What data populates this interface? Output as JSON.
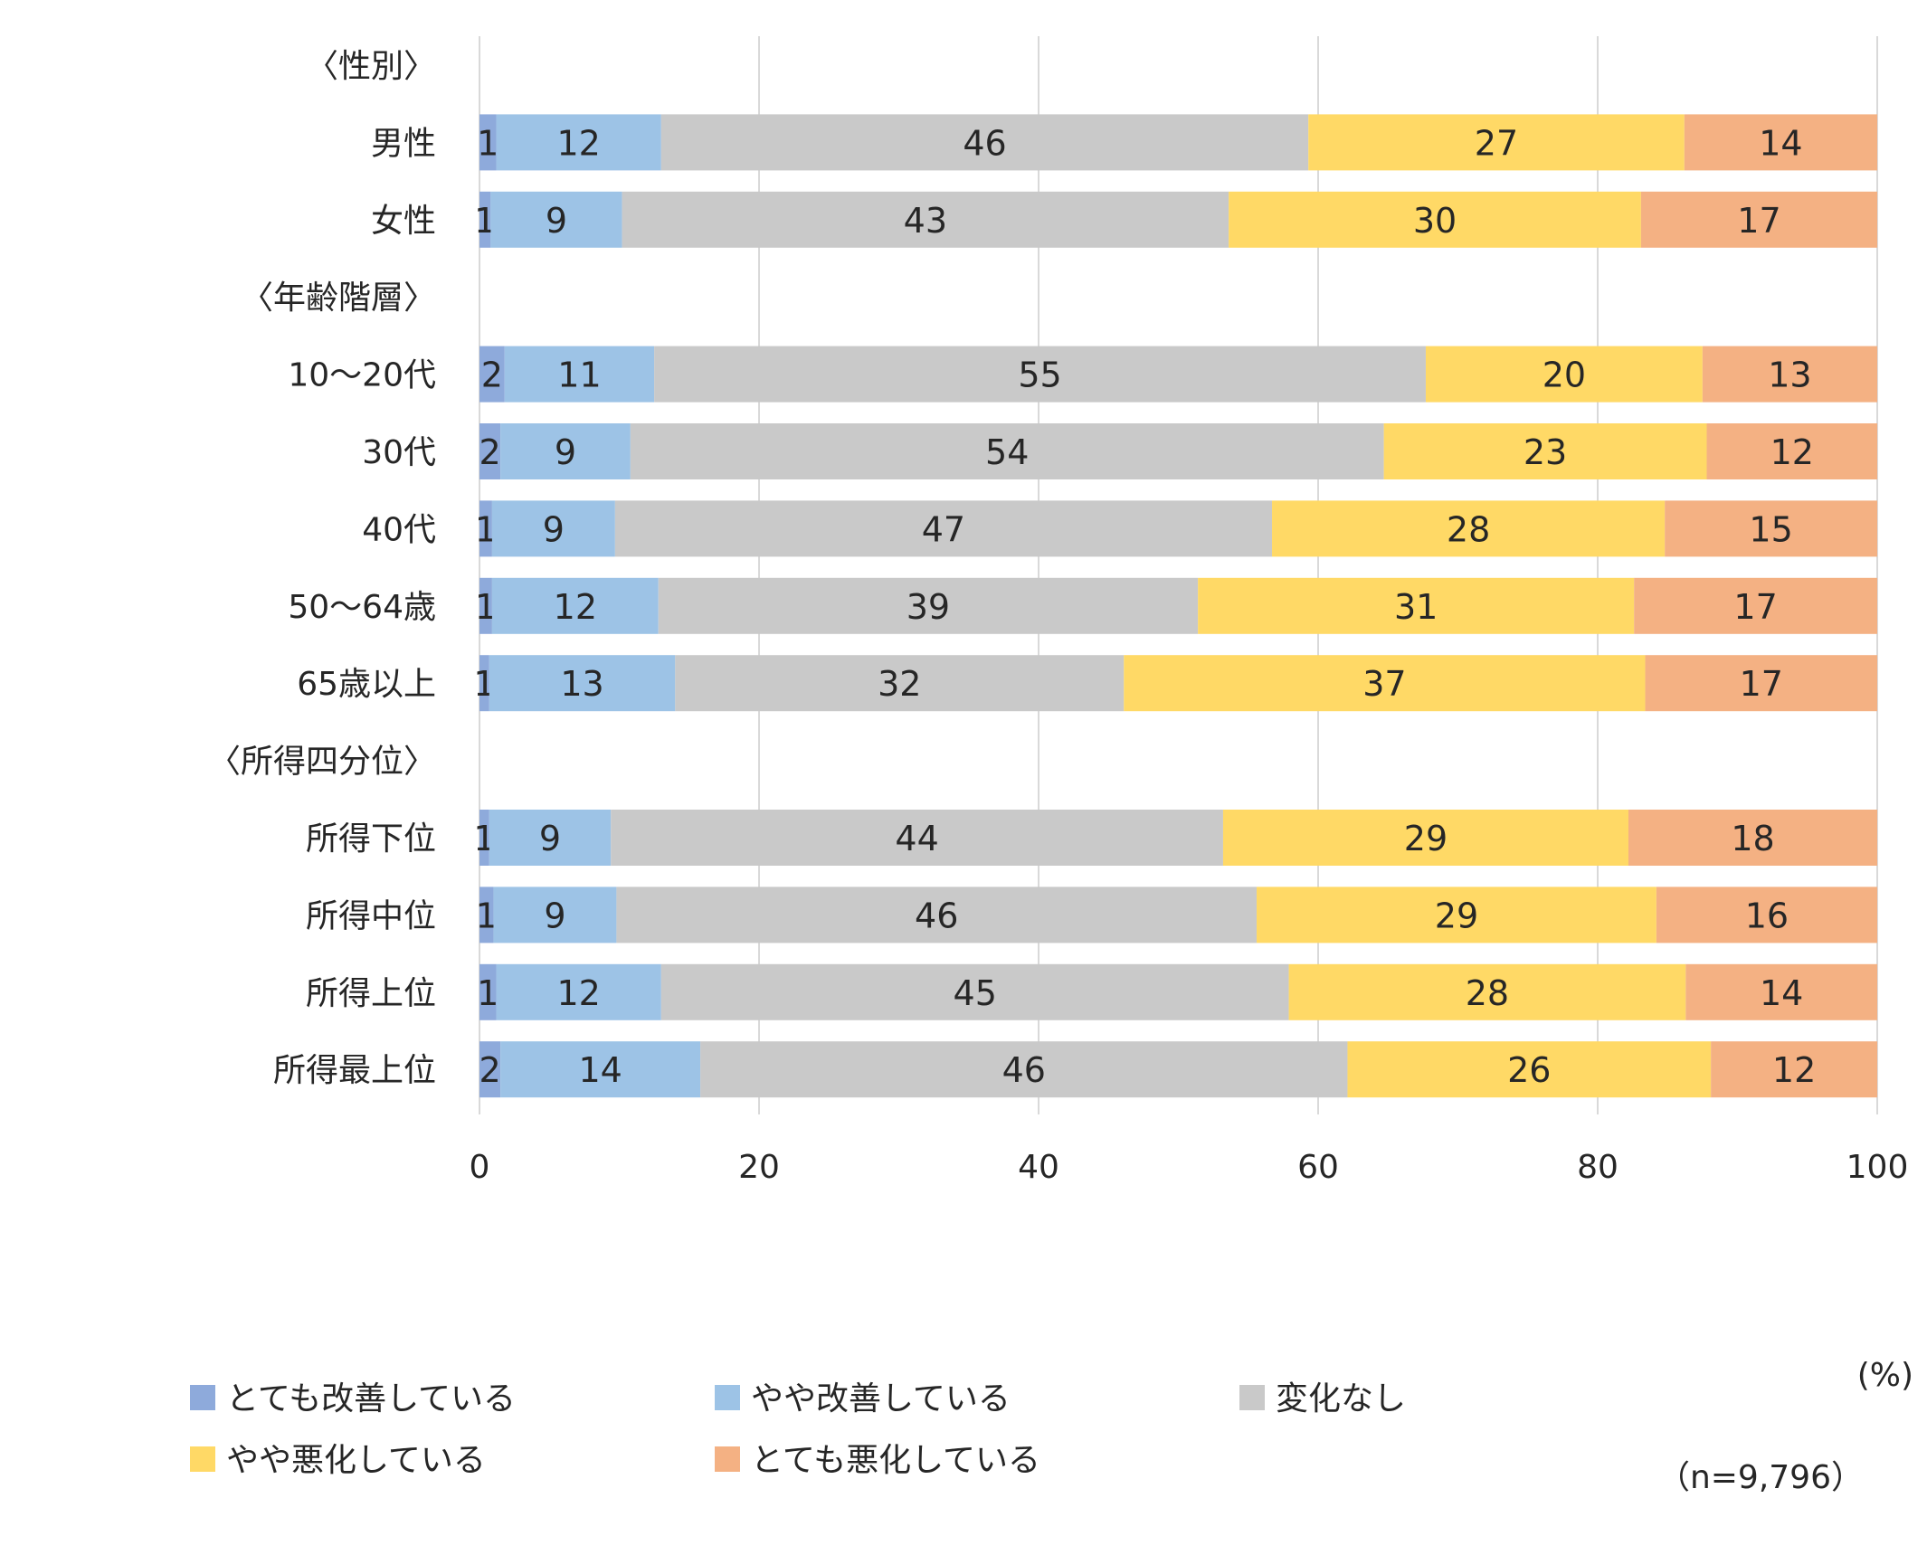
{
  "chart_data": {
    "type": "bar",
    "orientation": "horizontal",
    "stacked": true,
    "xlim": [
      0,
      100
    ],
    "xticks": [
      0,
      20,
      40,
      60,
      80,
      100
    ],
    "grid": true,
    "legend_position": "bottom",
    "unit_note": "(%)",
    "sample_note": "（n=9,796）",
    "rows": [
      {
        "label": "〈性別〉",
        "header": true
      },
      {
        "label": "男性",
        "values": [
          1.2,
          11.8,
          46.3,
          26.9,
          13.8
        ],
        "labels": [
          "1",
          "12",
          "46",
          "27",
          "14"
        ]
      },
      {
        "label": "女性",
        "values": [
          0.8,
          9.4,
          43.4,
          29.5,
          16.9
        ],
        "labels": [
          "1",
          "9",
          "43",
          "30",
          "17"
        ]
      },
      {
        "label": "〈年齢階層〉",
        "header": true
      },
      {
        "label": "10～20代",
        "values": [
          1.8,
          10.7,
          55.2,
          19.8,
          12.5
        ],
        "labels": [
          "2",
          "11",
          "55",
          "20",
          "13"
        ]
      },
      {
        "label": "30代",
        "values": [
          1.5,
          9.3,
          53.9,
          23.1,
          12.2
        ],
        "labels": [
          "2",
          "9",
          "54",
          "23",
          "12"
        ]
      },
      {
        "label": "40代",
        "values": [
          0.9,
          8.8,
          47.0,
          28.1,
          15.2
        ],
        "labels": [
          "1",
          "9",
          "47",
          "28",
          "15"
        ]
      },
      {
        "label": "50～64歳",
        "values": [
          0.9,
          11.9,
          38.6,
          31.2,
          17.4
        ],
        "labels": [
          "1",
          "12",
          "39",
          "31",
          "17"
        ]
      },
      {
        "label": "65歳以上",
        "values": [
          0.7,
          13.3,
          32.1,
          37.3,
          16.6
        ],
        "labels": [
          "1",
          "13",
          "32",
          "37",
          "17"
        ]
      },
      {
        "label": "〈所得四分位〉",
        "header": true
      },
      {
        "label": "所得下位",
        "values": [
          0.7,
          8.7,
          43.8,
          29.0,
          17.8
        ],
        "labels": [
          "1",
          "9",
          "44",
          "29",
          "18"
        ]
      },
      {
        "label": "所得中位",
        "values": [
          1.0,
          8.8,
          45.8,
          28.6,
          15.8
        ],
        "labels": [
          "1",
          "9",
          "46",
          "29",
          "16"
        ]
      },
      {
        "label": "所得上位",
        "values": [
          1.2,
          11.8,
          44.9,
          28.4,
          13.7
        ],
        "labels": [
          "1",
          "12",
          "45",
          "28",
          "14"
        ]
      },
      {
        "label": "所得最上位",
        "values": [
          1.5,
          14.3,
          46.3,
          26.0,
          11.9
        ],
        "labels": [
          "2",
          "14",
          "46",
          "26",
          "12"
        ]
      }
    ],
    "series": [
      {
        "name": "とても改善している",
        "color": "#8eaadb"
      },
      {
        "name": "やや改善している",
        "color": "#9dc3e6"
      },
      {
        "name": "変化なし",
        "color": "#c9c9c9"
      },
      {
        "name": "やや悪化している",
        "color": "#ffd966"
      },
      {
        "name": "とても悪化している",
        "color": "#f4b183"
      }
    ]
  }
}
